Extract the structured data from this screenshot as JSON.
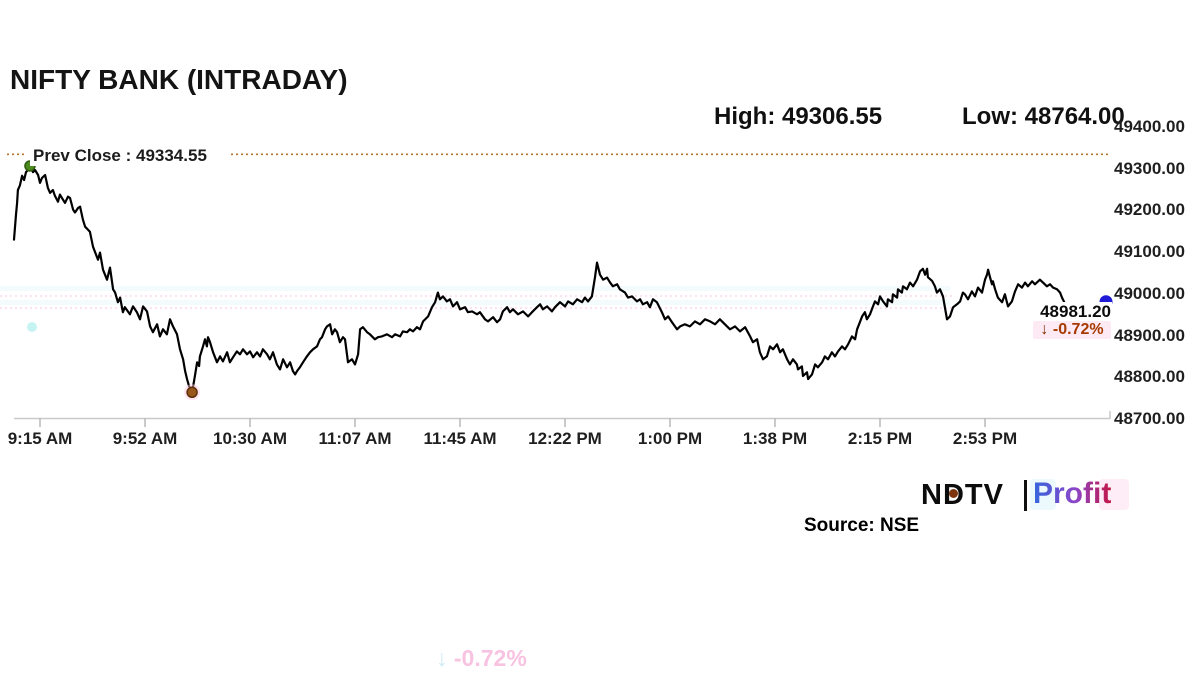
{
  "header": {
    "title": "NIFTY BANK (INTRADAY)",
    "high_label": "High: 49306.55",
    "low_label": "Low: 48764.00"
  },
  "prev_close": {
    "label": "Prev Close : 49334.55",
    "line_color": "#b5732e"
  },
  "last_price": {
    "value_label": "48981.20",
    "arrow_glyph": "↓",
    "change_text": "-0.72%",
    "change_color": "#a63a00",
    "arrow_color": "#7e2a00",
    "change_bg": "#fdeaf4",
    "marker_color": "#1f1bd6"
  },
  "branding": {
    "ndtv": "NDTV",
    "profit": "Profit",
    "source": "Source: NSE",
    "ndtv_dot_color": "#7d3510",
    "profit_gradient": [
      "#3466dd",
      "#8d45c8",
      "#c11746"
    ],
    "glow_cyan": "#d9f5fb",
    "glow_pink": "#fcd7ee"
  },
  "artifacts": {
    "ghost_arrow": "↓",
    "ghost_change_text": "-0.72%",
    "ghost_arrow_color": "#c9ecf6",
    "ghost_text_color": "#f8bfe0",
    "ghost_dotted_color": "#fcd9ec",
    "ghost_band_color": "#eaf7fb",
    "ghost_dot_color": "#b8f1ef"
  },
  "axis_colors": {
    "axis_line": "#c9c9c9",
    "tick": "#adadad"
  },
  "chart_data": {
    "type": "line",
    "title": "NIFTY BANK (INTRADAY)",
    "source": "NSE",
    "x_unit": "minutes after 9:15 AM",
    "session_minutes": 375,
    "x_tick_interval_minutes": 37.5,
    "x_tick_labels": [
      "9:15 AM",
      "9:52 AM",
      "10:30 AM",
      "11:07 AM",
      "11:45 AM",
      "12:22 PM",
      "1:00 PM",
      "1:38 PM",
      "2:15 PM",
      "2:53 PM"
    ],
    "y_tick_labels": [
      "49400.00",
      "49300.00",
      "49200.00",
      "49100.00",
      "49000.00",
      "48900.00",
      "48800.00",
      "48700.00"
    ],
    "ylim": [
      48700,
      49400
    ],
    "grid": false,
    "legend": false,
    "line_color": "#000000",
    "high": 49306.55,
    "low": 48764.0,
    "prev_close": 49334.55,
    "last": 48981.2,
    "change_pct": -0.72,
    "markers": {
      "open_peak": {
        "minute": 5.7,
        "price": 49306.55,
        "color": "#4a8a1f",
        "stroke": "#2f5c10"
      },
      "day_low": {
        "minute": 63.6,
        "price": 48764.0,
        "color": "#99561b",
        "stroke": "#5c3008",
        "glow": "#ffc9e5"
      }
    },
    "points": [
      [
        0,
        49130
      ],
      [
        0.7,
        49190
      ],
      [
        1.1,
        49218
      ],
      [
        1.4,
        49249
      ],
      [
        2.1,
        49260
      ],
      [
        2.9,
        49283
      ],
      [
        3.6,
        49273
      ],
      [
        4.3,
        49292
      ],
      [
        5,
        49297
      ],
      [
        5.7,
        49306.55
      ],
      [
        6.8,
        49292
      ],
      [
        7.5,
        49297
      ],
      [
        8.6,
        49285
      ],
      [
        9.3,
        49266
      ],
      [
        10,
        49278
      ],
      [
        11.1,
        49285
      ],
      [
        12.1,
        49254
      ],
      [
        12.9,
        49242
      ],
      [
        13.9,
        49249
      ],
      [
        14.6,
        49235
      ],
      [
        15.7,
        49221
      ],
      [
        16.4,
        49238
      ],
      [
        17.1,
        49230
      ],
      [
        18.2,
        49218
      ],
      [
        19.3,
        49233
      ],
      [
        20,
        49230
      ],
      [
        21.1,
        49202
      ],
      [
        21.8,
        49195
      ],
      [
        22.9,
        49206
      ],
      [
        23.6,
        49209
      ],
      [
        24.6,
        49178
      ],
      [
        25.4,
        49161
      ],
      [
        26.4,
        49154
      ],
      [
        27.1,
        49149
      ],
      [
        28.2,
        49113
      ],
      [
        28.9,
        49101
      ],
      [
        30,
        49082
      ],
      [
        30.7,
        49099
      ],
      [
        31.8,
        49058
      ],
      [
        32.5,
        49046
      ],
      [
        33.2,
        49034
      ],
      [
        34.3,
        49063
      ],
      [
        35.4,
        49011
      ],
      [
        36.1,
        49003
      ],
      [
        37.1,
        48980
      ],
      [
        37.9,
        48991
      ],
      [
        38.9,
        48956
      ],
      [
        39.6,
        48968
      ],
      [
        41.4,
        48951
      ],
      [
        42.5,
        48970
      ],
      [
        43.9,
        48956
      ],
      [
        45,
        48939
      ],
      [
        46.1,
        48970
      ],
      [
        47.5,
        48958
      ],
      [
        48.6,
        48922
      ],
      [
        49.6,
        48908
      ],
      [
        51.1,
        48927
      ],
      [
        52.1,
        48898
      ],
      [
        53.2,
        48915
      ],
      [
        54.6,
        48903
      ],
      [
        55.7,
        48939
      ],
      [
        56.8,
        48922
      ],
      [
        58.2,
        48903
      ],
      [
        59.3,
        48867
      ],
      [
        60.4,
        48843
      ],
      [
        61.1,
        48815
      ],
      [
        61.8,
        48796
      ],
      [
        62.5,
        48779
      ],
      [
        63.6,
        48764
      ],
      [
        64.6,
        48803
      ],
      [
        65.4,
        48836
      ],
      [
        66.1,
        48827
      ],
      [
        66.4,
        48850
      ],
      [
        67.5,
        48874
      ],
      [
        68.2,
        48891
      ],
      [
        68.9,
        48874
      ],
      [
        69.3,
        48896
      ],
      [
        70,
        48884
      ],
      [
        71.1,
        48860
      ],
      [
        72.5,
        48836
      ],
      [
        73.6,
        48850
      ],
      [
        74.6,
        48838
      ],
      [
        76.1,
        48860
      ],
      [
        77.1,
        48836
      ],
      [
        78.2,
        48848
      ],
      [
        79.6,
        48862
      ],
      [
        80.7,
        48855
      ],
      [
        81.8,
        48867
      ],
      [
        83.2,
        48855
      ],
      [
        84.3,
        48862
      ],
      [
        85.4,
        48848
      ],
      [
        86.8,
        48860
      ],
      [
        87.9,
        48850
      ],
      [
        88.9,
        48867
      ],
      [
        90.4,
        48855
      ],
      [
        91.4,
        48843
      ],
      [
        92.5,
        48860
      ],
      [
        93.9,
        48831
      ],
      [
        95,
        48819
      ],
      [
        96.1,
        48843
      ],
      [
        97.5,
        48824
      ],
      [
        98.6,
        48836
      ],
      [
        99.6,
        48815
      ],
      [
        100.4,
        48807
      ],
      [
        101.1,
        48815
      ],
      [
        102.1,
        48824
      ],
      [
        103.2,
        48836
      ],
      [
        104.6,
        48850
      ],
      [
        105.7,
        48860
      ],
      [
        106.8,
        48867
      ],
      [
        108.2,
        48874
      ],
      [
        109.3,
        48891
      ],
      [
        110,
        48896
      ],
      [
        111.1,
        48915
      ],
      [
        111.8,
        48922
      ],
      [
        112.9,
        48927
      ],
      [
        113.6,
        48903
      ],
      [
        114.6,
        48915
      ],
      [
        115.4,
        48908
      ],
      [
        116.4,
        48884
      ],
      [
        117.5,
        48896
      ],
      [
        118.2,
        48891
      ],
      [
        119.3,
        48836
      ],
      [
        120.7,
        48843
      ],
      [
        121.8,
        48831
      ],
      [
        122.9,
        48855
      ],
      [
        123.6,
        48915
      ],
      [
        124.6,
        48920
      ],
      [
        126.1,
        48908
      ],
      [
        127.1,
        48903
      ],
      [
        128.9,
        48891
      ],
      [
        130,
        48896
      ],
      [
        131.4,
        48898
      ],
      [
        133.2,
        48903
      ],
      [
        135,
        48896
      ],
      [
        136.1,
        48903
      ],
      [
        137.9,
        48898
      ],
      [
        138.9,
        48910
      ],
      [
        140.4,
        48908
      ],
      [
        141.4,
        48915
      ],
      [
        142.5,
        48910
      ],
      [
        143.9,
        48920
      ],
      [
        145,
        48915
      ],
      [
        146.1,
        48934
      ],
      [
        147.9,
        48946
      ],
      [
        149.3,
        48968
      ],
      [
        150.4,
        48980
      ],
      [
        151.4,
        49003
      ],
      [
        152.1,
        48987
      ],
      [
        153.2,
        48994
      ],
      [
        154.6,
        48982
      ],
      [
        155.7,
        48987
      ],
      [
        156.8,
        48970
      ],
      [
        158.2,
        48980
      ],
      [
        159.3,
        48963
      ],
      [
        161.1,
        48968
      ],
      [
        162.1,
        48956
      ],
      [
        163.6,
        48958
      ],
      [
        165.4,
        48951
      ],
      [
        166.4,
        48956
      ],
      [
        168.2,
        48939
      ],
      [
        169.3,
        48934
      ],
      [
        171.1,
        48944
      ],
      [
        172.5,
        48932
      ],
      [
        173.6,
        48939
      ],
      [
        174.6,
        48958
      ],
      [
        176.1,
        48968
      ],
      [
        177.1,
        48956
      ],
      [
        178.2,
        48963
      ],
      [
        180,
        48951
      ],
      [
        181.8,
        48958
      ],
      [
        183.6,
        48946
      ],
      [
        185,
        48956
      ],
      [
        186.8,
        48968
      ],
      [
        187.9,
        48975
      ],
      [
        188.9,
        48963
      ],
      [
        190.4,
        48970
      ],
      [
        192.1,
        48958
      ],
      [
        193.2,
        48968
      ],
      [
        195,
        48980
      ],
      [
        196.8,
        48970
      ],
      [
        197.9,
        48982
      ],
      [
        199.6,
        48975
      ],
      [
        201.1,
        48987
      ],
      [
        202.9,
        48980
      ],
      [
        203.9,
        48991
      ],
      [
        205,
        48982
      ],
      [
        206.4,
        48994
      ],
      [
        207.5,
        49040
      ],
      [
        208.2,
        49075
      ],
      [
        209.3,
        49046
      ],
      [
        210.4,
        49034
      ],
      [
        211.8,
        49039
      ],
      [
        212.9,
        49027
      ],
      [
        213.9,
        49018
      ],
      [
        215.4,
        49023
      ],
      [
        216.4,
        49011
      ],
      [
        218.2,
        49003
      ],
      [
        219.3,
        48991
      ],
      [
        220.7,
        48994
      ],
      [
        222.5,
        48982
      ],
      [
        223.6,
        48987
      ],
      [
        224.6,
        48975
      ],
      [
        226.1,
        48980
      ],
      [
        227.1,
        48968
      ],
      [
        228.2,
        48987
      ],
      [
        229.6,
        48980
      ],
      [
        231.4,
        48956
      ],
      [
        232.5,
        48939
      ],
      [
        233.6,
        48946
      ],
      [
        235,
        48932
      ],
      [
        236.8,
        48915
      ],
      [
        237.9,
        48922
      ],
      [
        239.6,
        48927
      ],
      [
        241.4,
        48922
      ],
      [
        243.2,
        48934
      ],
      [
        245,
        48927
      ],
      [
        246.8,
        48939
      ],
      [
        248.6,
        48934
      ],
      [
        250.4,
        48927
      ],
      [
        252.1,
        48939
      ],
      [
        253.9,
        48927
      ],
      [
        255.7,
        48915
      ],
      [
        257.5,
        48922
      ],
      [
        259.3,
        48910
      ],
      [
        261.1,
        48920
      ],
      [
        262.9,
        48898
      ],
      [
        263.9,
        48884
      ],
      [
        265.4,
        48891
      ],
      [
        266.4,
        48860
      ],
      [
        267.5,
        48843
      ],
      [
        268.9,
        48850
      ],
      [
        270,
        48874
      ],
      [
        271.1,
        48867
      ],
      [
        272.5,
        48879
      ],
      [
        273.6,
        48860
      ],
      [
        274.6,
        48867
      ],
      [
        276.1,
        48843
      ],
      [
        277.1,
        48831
      ],
      [
        278.2,
        48843
      ],
      [
        279.6,
        48831
      ],
      [
        280,
        48819
      ],
      [
        281.4,
        48826
      ],
      [
        281.8,
        48803
      ],
      [
        283.2,
        48812
      ],
      [
        283.6,
        48796
      ],
      [
        285,
        48807
      ],
      [
        286.1,
        48831
      ],
      [
        287.1,
        48824
      ],
      [
        288.6,
        48836
      ],
      [
        289.6,
        48850
      ],
      [
        290.7,
        48843
      ],
      [
        292.1,
        48860
      ],
      [
        293.2,
        48850
      ],
      [
        294.3,
        48862
      ],
      [
        295.7,
        48874
      ],
      [
        296.8,
        48867
      ],
      [
        297.9,
        48879
      ],
      [
        299.3,
        48898
      ],
      [
        300.4,
        48891
      ],
      [
        301.1,
        48915
      ],
      [
        302.1,
        48932
      ],
      [
        302.9,
        48946
      ],
      [
        303.9,
        48956
      ],
      [
        304.6,
        48939
      ],
      [
        305.7,
        48951
      ],
      [
        306.8,
        48970
      ],
      [
        307.5,
        48982
      ],
      [
        308.6,
        48975
      ],
      [
        309.3,
        48994
      ],
      [
        310.4,
        48982
      ],
      [
        311.8,
        48970
      ],
      [
        312.1,
        48987
      ],
      [
        313.6,
        48980
      ],
      [
        313.9,
        48999
      ],
      [
        315.4,
        48991
      ],
      [
        315.7,
        49011
      ],
      [
        317.1,
        49003
      ],
      [
        317.5,
        49018
      ],
      [
        318.9,
        49011
      ],
      [
        320,
        49027
      ],
      [
        321.1,
        49018
      ],
      [
        322.5,
        49034
      ],
      [
        323.6,
        49054
      ],
      [
        324.6,
        49060
      ],
      [
        325.4,
        49046
      ],
      [
        326.1,
        49060
      ],
      [
        326.4,
        49040
      ],
      [
        327.9,
        49031
      ],
      [
        328.9,
        49018
      ],
      [
        329.6,
        49003
      ],
      [
        330.7,
        49011
      ],
      [
        331.8,
        48994
      ],
      [
        333.2,
        48939
      ],
      [
        334.3,
        48946
      ],
      [
        335.4,
        48968
      ],
      [
        336.8,
        48975
      ],
      [
        337.9,
        48982
      ],
      [
        338.9,
        49003
      ],
      [
        339.6,
        48999
      ],
      [
        340.7,
        48987
      ],
      [
        342.1,
        49006
      ],
      [
        343.2,
        48994
      ],
      [
        344.3,
        49015
      ],
      [
        345.7,
        49003
      ],
      [
        346.8,
        49034
      ],
      [
        347.5,
        49046
      ],
      [
        347.9,
        49058
      ],
      [
        348.6,
        49039
      ],
      [
        349.3,
        49023
      ],
      [
        349.6,
        49030
      ],
      [
        350.4,
        49011
      ],
      [
        351.4,
        48991
      ],
      [
        352.9,
        48980
      ],
      [
        353.9,
        48999
      ],
      [
        355,
        48970
      ],
      [
        356.4,
        48982
      ],
      [
        357.5,
        49006
      ],
      [
        358.6,
        49023
      ],
      [
        360,
        49015
      ],
      [
        361.1,
        49027
      ],
      [
        362.1,
        49018
      ],
      [
        363.6,
        49030
      ],
      [
        364.6,
        49023
      ],
      [
        366.4,
        49034
      ],
      [
        367.5,
        49027
      ],
      [
        368.9,
        49018
      ],
      [
        370,
        49023
      ],
      [
        371.1,
        49015
      ],
      [
        372.5,
        49011
      ],
      [
        373.6,
        49003
      ],
      [
        374.3,
        48991
      ],
      [
        375,
        48981.2
      ]
    ]
  }
}
